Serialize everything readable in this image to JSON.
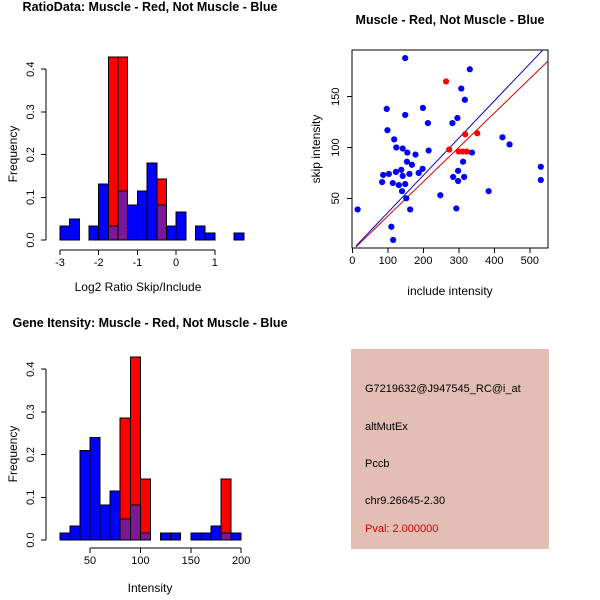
{
  "colors": {
    "muscle_red": "#FF0000",
    "not_muscle_blue": "#0000FF",
    "overlap_purple": "#7A1898",
    "axis_black": "#000000",
    "fit_line_blue": "#0000CC",
    "fit_line_red": "#CC0000",
    "info_bg": "#E3BEB4",
    "pval_red": "#CC0000"
  },
  "chart_data": [
    {
      "id": "ratio-histogram",
      "type": "bar",
      "title": "RatioData: Muscle - Red, Not Muscle - Blue",
      "xlabel": "Log2 Ratio Skip/Include",
      "ylabel": "Frequency",
      "bin_start": -3.0,
      "bin_width": 0.25,
      "series": [
        {
          "name": "Not Muscle (blue)",
          "color": "#0000FF",
          "values": [
            0.033,
            0.049,
            0,
            0.033,
            0.131,
            0.033,
            0.115,
            0.082,
            0.115,
            0.18,
            0.082,
            0.033,
            0.066,
            0,
            0.033,
            0.016,
            0,
            0,
            0.016
          ]
        },
        {
          "name": "Muscle (red)",
          "color": "#FF0000",
          "values": [
            0,
            0,
            0,
            0,
            0,
            0.429,
            0.429,
            0,
            0,
            0,
            0.143,
            0,
            0,
            0,
            0,
            0,
            0,
            0,
            0
          ]
        }
      ],
      "xticks": {
        "values": [
          -3,
          -2,
          -1,
          0,
          1
        ],
        "labels": [
          "-3",
          "-2",
          "-1",
          "0",
          "1"
        ]
      },
      "yticks": {
        "values": [
          0,
          0.1,
          0.2,
          0.3,
          0.4
        ],
        "labels": [
          "0.0",
          "0.1",
          "0.2",
          "0.3",
          "0.4"
        ]
      },
      "ylim": [
        0,
        0.43
      ],
      "grid": false
    },
    {
      "id": "intensity-scatter",
      "type": "scatter",
      "title": "Muscle - Red, Not Muscle - Blue",
      "xlabel": "include intensity",
      "ylabel": "skip intensity",
      "xticks": {
        "values": [
          0,
          100,
          200,
          300,
          400,
          500
        ],
        "labels": [
          "0",
          "100",
          "200",
          "300",
          "400",
          "500"
        ]
      },
      "yticks": {
        "values": [
          50,
          100,
          150
        ],
        "labels": [
          "50",
          "100",
          "150"
        ]
      },
      "xlim": [
        -15,
        551
      ],
      "ylim": [
        3,
        196
      ],
      "grid": false,
      "series": [
        {
          "name": "Not Muscle (blue)",
          "color": "#0000FF",
          "points": [
            [
              149,
              188
            ],
            [
              97,
              138
            ],
            [
              149,
              132
            ],
            [
              199,
              139
            ],
            [
              213,
              124
            ],
            [
              99,
              117
            ],
            [
              118,
              108
            ],
            [
              124,
              100
            ],
            [
              142,
              99
            ],
            [
              155,
              95
            ],
            [
              178,
              93
            ],
            [
              215,
              97
            ],
            [
              154,
              86
            ],
            [
              168,
              83
            ],
            [
              138,
              78
            ],
            [
              123,
              76
            ],
            [
              103,
              74
            ],
            [
              87,
              73
            ],
            [
              142,
              72
            ],
            [
              161,
              74
            ],
            [
              187,
              75
            ],
            [
              198,
              79
            ],
            [
              84,
              66
            ],
            [
              114,
              65
            ],
            [
              131,
              63
            ],
            [
              149,
              64
            ],
            [
              140,
              57
            ],
            [
              152,
              50
            ],
            [
              248,
              53
            ],
            [
              15,
              39
            ],
            [
              163,
              39
            ],
            [
              110,
              22
            ],
            [
              115,
              9
            ],
            [
              331,
              177
            ],
            [
              307,
              158
            ],
            [
              317,
              147
            ],
            [
              296,
              129
            ],
            [
              282,
              124
            ],
            [
              423,
              110
            ],
            [
              443,
              103
            ],
            [
              337,
              95
            ],
            [
              312,
              86
            ],
            [
              298,
              77
            ],
            [
              315,
              71
            ],
            [
              284,
              71
            ],
            [
              298,
              67
            ],
            [
              531,
              81
            ],
            [
              531,
              68
            ],
            [
              384,
              57
            ],
            [
              293,
              40
            ]
          ]
        },
        {
          "name": "Muscle (red)",
          "color": "#FF0000",
          "points": [
            [
              264,
              165
            ],
            [
              318,
              113
            ],
            [
              352,
              114
            ],
            [
              273,
              98
            ],
            [
              300,
              96
            ],
            [
              311,
              96
            ],
            [
              322,
              96
            ]
          ]
        }
      ],
      "lines": [
        {
          "name": "not-muscle-fit",
          "color": "#0000CC",
          "from": [
            10,
            3
          ],
          "to": [
            537,
            196
          ]
        },
        {
          "name": "muscle-fit",
          "color": "#CC0000",
          "from": [
            10,
            2
          ],
          "to": [
            551,
            185
          ]
        }
      ]
    },
    {
      "id": "gene-intensity-histogram",
      "type": "bar",
      "title": "Gene Itensity: Muscle - Red, Not Muscle - Blue",
      "xlabel": "Intensity",
      "ylabel": "Frequency",
      "bin_start": 20,
      "bin_width": 10,
      "series": [
        {
          "name": "Not Muscle (blue)",
          "color": "#0000FF",
          "values": [
            0.016,
            0.033,
            0.21,
            0.24,
            0.082,
            0.115,
            0.049,
            0.082,
            0.016,
            0,
            0.016,
            0.016,
            0,
            0.016,
            0.016,
            0.033,
            0.016,
            0.016
          ]
        },
        {
          "name": "Muscle (red)",
          "color": "#FF0000",
          "values": [
            0,
            0,
            0,
            0,
            0,
            0,
            0.286,
            0.429,
            0.143,
            0,
            0,
            0,
            0,
            0,
            0,
            0,
            0.143,
            0
          ]
        }
      ],
      "xticks": {
        "values": [
          50,
          100,
          150,
          200
        ],
        "labels": [
          "50",
          "100",
          "150",
          "200"
        ]
      },
      "yticks": {
        "values": [
          0,
          0.1,
          0.2,
          0.3,
          0.4
        ],
        "labels": [
          "0.0",
          "0.1",
          "0.2",
          "0.3",
          "0.4"
        ]
      },
      "ylim": [
        0,
        0.43
      ],
      "grid": false
    }
  ],
  "info_panel": {
    "probe_id": "G7219632@J947545_RC@i_at",
    "event_type": "altMutEx",
    "gene": "Pccb",
    "locus": "chr9.26645-2.30",
    "pval": "Pval: 2.000000"
  }
}
